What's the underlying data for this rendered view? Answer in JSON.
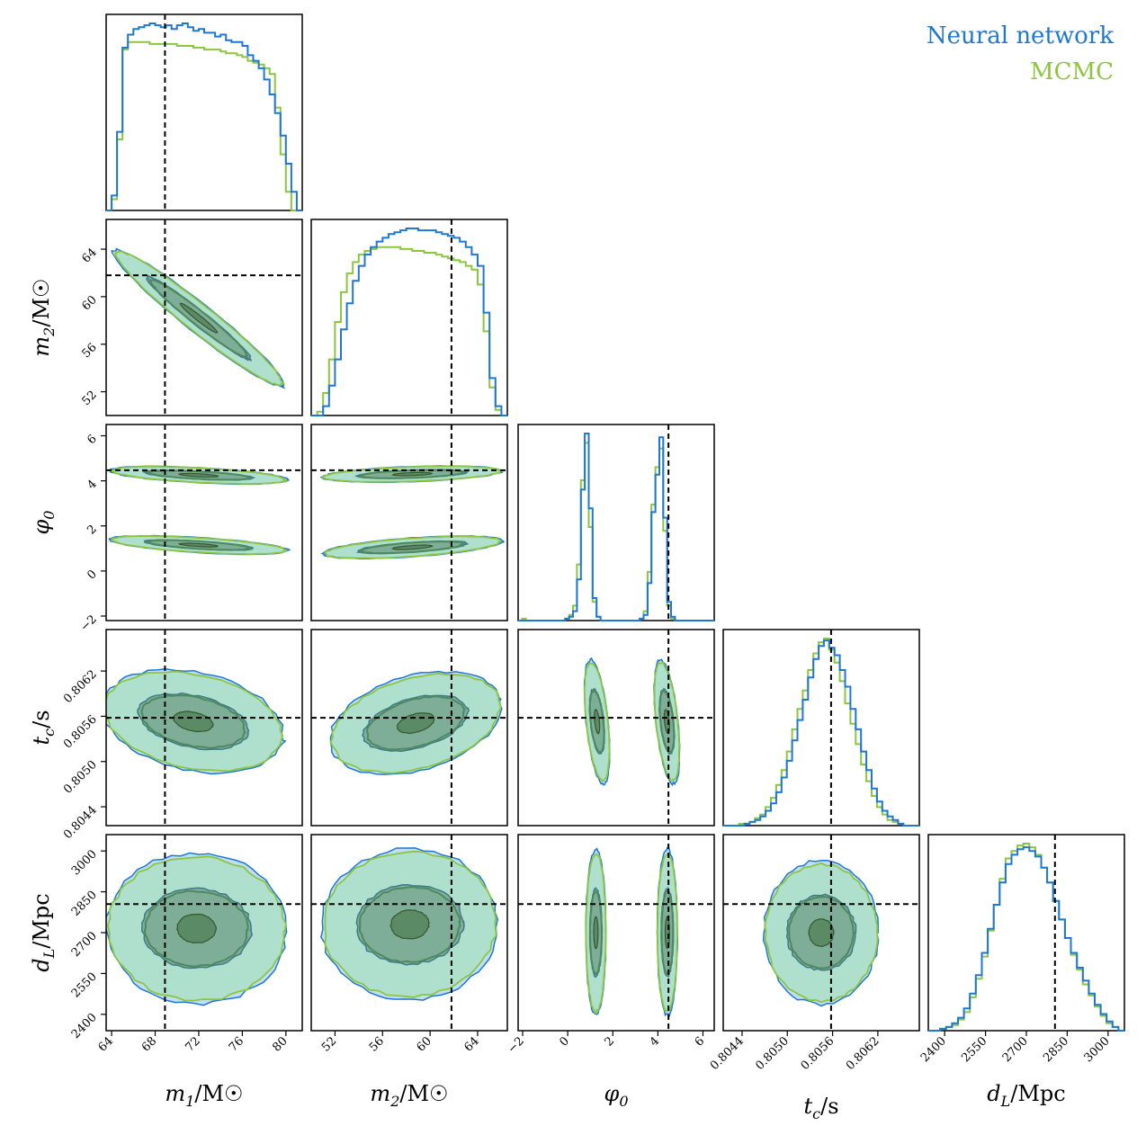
{
  "chart_data": {
    "type": "corner",
    "legend": [
      {
        "name": "Neural network",
        "color": "#1f77d4"
      },
      {
        "name": "MCMC",
        "color": "#8cc63f"
      }
    ],
    "colors": {
      "nn": "#1f77d4",
      "nn_fill": "#b9dcf5",
      "mc": "#8cc63f",
      "mc_fill": "#a9e0c3",
      "inner": "#4f8a5e",
      "truth": "#000000"
    },
    "parameters": [
      {
        "key": "m1",
        "label": "m1/M⊙",
        "range": [
          63.5,
          81.5
        ],
        "ticks": [
          64,
          68,
          72,
          76,
          80
        ],
        "truth": 68.9
      },
      {
        "key": "m2",
        "label": "m2/M⊙",
        "range": [
          50.0,
          66.5
        ],
        "ticks": [
          52,
          56,
          60,
          64
        ],
        "truth": 61.8
      },
      {
        "key": "phi0",
        "label": "φ0",
        "range": [
          -2.2,
          6.5
        ],
        "ticks": [
          -2,
          0,
          2,
          4,
          6
        ],
        "truth": 4.47
      },
      {
        "key": "tc",
        "label": "tc/s",
        "range": [
          0.80415,
          0.80675
        ],
        "ticks": [
          0.8044,
          0.805,
          0.8056,
          0.8062
        ],
        "truth": 0.80558
      },
      {
        "key": "dL",
        "label": "dL/Mpc",
        "range": [
          2340,
          3060
        ],
        "ticks": [
          2400,
          2550,
          2700,
          2850,
          3000
        ],
        "truth": 2805
      }
    ],
    "tick_labels": {
      "m1": [
        "64",
        "68",
        "72",
        "76",
        "80"
      ],
      "m2": [
        "52",
        "56",
        "60",
        "64"
      ],
      "phi0": [
        "−2",
        "0",
        "2",
        "4",
        "6"
      ],
      "tc": [
        "0.8044",
        "0.8050",
        "0.8056",
        "0.8062"
      ],
      "dL": [
        "2400",
        "2550",
        "2700",
        "2850",
        "3000"
      ]
    },
    "axis_labels": {
      "m1": {
        "var": "m",
        "sub": "1",
        "unit": "/M☉"
      },
      "m2": {
        "var": "m",
        "sub": "2",
        "unit": "/M☉"
      },
      "phi0": {
        "var": "φ",
        "sub": "0",
        "unit": ""
      },
      "tc": {
        "var": "t",
        "sub": "c",
        "unit": "/s"
      },
      "dL": {
        "var": "d",
        "sub": "L",
        "unit": "/Mpc"
      }
    },
    "histograms": {
      "m1": {
        "nn": [
          0.0,
          0.08,
          0.42,
          0.87,
          0.94,
          0.97,
          0.98,
          0.99,
          1.0,
          0.99,
          0.98,
          0.99,
          0.97,
          0.99,
          1.0,
          0.98,
          0.96,
          0.97,
          0.95,
          0.95,
          0.93,
          0.94,
          0.91,
          0.9,
          0.9,
          0.88,
          0.83,
          0.8,
          0.76,
          0.7,
          0.62,
          0.52,
          0.4,
          0.25,
          0.1,
          0.0
        ],
        "mc": [
          0.0,
          0.06,
          0.38,
          0.86,
          0.9,
          0.9,
          0.9,
          0.9,
          0.89,
          0.89,
          0.89,
          0.89,
          0.89,
          0.88,
          0.88,
          0.88,
          0.87,
          0.87,
          0.86,
          0.86,
          0.86,
          0.85,
          0.84,
          0.84,
          0.83,
          0.82,
          0.8,
          0.79,
          0.78,
          0.76,
          0.73,
          0.55,
          0.3,
          0.1,
          0.0,
          0.0
        ]
      },
      "m2": {
        "nn": [
          0.0,
          0.0,
          0.05,
          0.16,
          0.3,
          0.46,
          0.6,
          0.72,
          0.8,
          0.86,
          0.9,
          0.93,
          0.95,
          0.97,
          0.98,
          0.99,
          1.0,
          1.0,
          0.99,
          0.99,
          0.99,
          0.98,
          0.97,
          0.96,
          0.95,
          0.93,
          0.9,
          0.86,
          0.8,
          0.55,
          0.2,
          0.05,
          0.0
        ],
        "mc": [
          0.0,
          0.02,
          0.12,
          0.3,
          0.5,
          0.66,
          0.76,
          0.82,
          0.86,
          0.88,
          0.89,
          0.9,
          0.9,
          0.9,
          0.9,
          0.89,
          0.89,
          0.88,
          0.88,
          0.87,
          0.87,
          0.86,
          0.85,
          0.84,
          0.83,
          0.82,
          0.8,
          0.78,
          0.7,
          0.45,
          0.15,
          0.03,
          0.0
        ]
      },
      "phi0": {
        "nn": [
          0.0,
          0.0,
          0.0,
          0.0,
          0.0,
          0.0,
          0.0,
          0.0,
          0.0,
          0.0,
          0.0,
          0.0,
          0.01,
          0.02,
          0.05,
          0.22,
          0.7,
          1.0,
          0.6,
          0.12,
          0.02,
          0.0,
          0.0,
          0.0,
          0.0,
          0.0,
          0.0,
          0.0,
          0.0,
          0.0,
          0.0,
          0.01,
          0.03,
          0.2,
          0.58,
          0.78,
          0.98,
          0.55,
          0.1,
          0.02,
          0.0,
          0.0,
          0.0,
          0.0,
          0.0,
          0.0,
          0.0,
          0.0,
          0.0,
          0.0
        ],
        "mc": [
          0.0,
          0.01,
          0.0,
          0.0,
          0.0,
          0.0,
          0.0,
          0.0,
          0.0,
          0.0,
          0.0,
          0.0,
          0.01,
          0.03,
          0.08,
          0.3,
          0.75,
          0.95,
          0.5,
          0.1,
          0.02,
          0.0,
          0.0,
          0.0,
          0.0,
          0.0,
          0.0,
          0.0,
          0.0,
          0.0,
          0.0,
          0.01,
          0.05,
          0.26,
          0.62,
          0.82,
          0.92,
          0.48,
          0.08,
          0.01,
          0.0,
          0.0,
          0.0,
          0.0,
          0.0,
          0.0,
          0.0,
          0.0,
          0.0,
          0.0
        ]
      },
      "tc": {
        "nn": [
          0.0,
          0.0,
          0.0,
          0.0,
          0.01,
          0.02,
          0.03,
          0.05,
          0.08,
          0.12,
          0.18,
          0.26,
          0.35,
          0.46,
          0.57,
          0.68,
          0.8,
          0.9,
          0.97,
          1.0,
          0.96,
          0.92,
          0.84,
          0.75,
          0.63,
          0.52,
          0.4,
          0.3,
          0.2,
          0.13,
          0.08,
          0.05,
          0.03,
          0.01,
          0.0,
          0.0,
          0.0
        ],
        "mc": [
          0.0,
          0.0,
          0.0,
          0.01,
          0.01,
          0.02,
          0.04,
          0.06,
          0.1,
          0.15,
          0.22,
          0.3,
          0.4,
          0.52,
          0.63,
          0.73,
          0.84,
          0.93,
          0.99,
          1.01,
          0.95,
          0.88,
          0.78,
          0.66,
          0.55,
          0.44,
          0.33,
          0.24,
          0.16,
          0.1,
          0.06,
          0.03,
          0.02,
          0.01,
          0.0,
          0.0,
          0.0
        ]
      },
      "dL": {
        "nn": [
          0.0,
          0.0,
          0.01,
          0.02,
          0.04,
          0.07,
          0.12,
          0.2,
          0.3,
          0.42,
          0.55,
          0.68,
          0.8,
          0.9,
          0.95,
          0.98,
          0.99,
          0.97,
          0.94,
          0.88,
          0.8,
          0.7,
          0.6,
          0.5,
          0.42,
          0.34,
          0.27,
          0.2,
          0.14,
          0.09,
          0.05,
          0.02,
          0.0
        ],
        "mc": [
          0.0,
          0.0,
          0.01,
          0.02,
          0.03,
          0.06,
          0.1,
          0.18,
          0.28,
          0.4,
          0.54,
          0.68,
          0.82,
          0.93,
          0.97,
          1.0,
          1.01,
          0.99,
          0.95,
          0.88,
          0.8,
          0.7,
          0.6,
          0.5,
          0.41,
          0.33,
          0.25,
          0.19,
          0.13,
          0.08,
          0.04,
          0.02,
          0.0
        ]
      }
    }
  }
}
